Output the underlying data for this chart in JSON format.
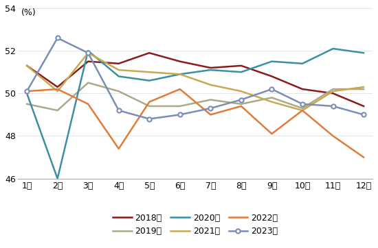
{
  "months": [
    "1月",
    "2月",
    "3月",
    "4月",
    "5月",
    "6月",
    "7月",
    "8月",
    "9月",
    "10月",
    "11月",
    "12月"
  ],
  "series_order": [
    "2018年",
    "2019年",
    "2020年",
    "2021年",
    "2022年",
    "2023年"
  ],
  "series": {
    "2018年": {
      "values": [
        51.3,
        50.3,
        51.5,
        51.4,
        51.9,
        51.5,
        51.2,
        51.3,
        50.8,
        50.2,
        50.0,
        49.4
      ],
      "color": "#8B1A1A",
      "marker": null,
      "linewidth": 1.8
    },
    "2019年": {
      "values": [
        49.5,
        49.2,
        50.5,
        50.1,
        49.4,
        49.4,
        49.7,
        49.5,
        49.8,
        49.3,
        50.2,
        50.2
      ],
      "color": "#AAAA88",
      "marker": null,
      "linewidth": 1.8
    },
    "2020年": {
      "values": [
        50.0,
        46.0,
        52.0,
        50.8,
        50.6,
        50.9,
        51.1,
        51.0,
        51.5,
        51.4,
        52.1,
        51.9
      ],
      "color": "#3A8FA3",
      "marker": null,
      "linewidth": 1.8
    },
    "2021年": {
      "values": [
        51.3,
        50.1,
        51.9,
        51.1,
        51.0,
        50.9,
        50.4,
        50.1,
        49.6,
        49.2,
        50.1,
        50.3
      ],
      "color": "#C8A951",
      "marker": null,
      "linewidth": 1.8
    },
    "2022年": {
      "values": [
        50.1,
        50.2,
        49.5,
        47.4,
        49.6,
        50.2,
        49.0,
        49.4,
        48.1,
        49.2,
        48.0,
        47.0
      ],
      "color": "#E07B39",
      "marker": null,
      "linewidth": 1.8
    },
    "2023年": {
      "values": [
        50.1,
        52.6,
        51.9,
        49.2,
        48.8,
        49.0,
        49.3,
        49.7,
        50.2,
        49.5,
        49.4,
        49.0
      ],
      "color": "#7B8DB5",
      "marker": "o",
      "linewidth": 1.8
    }
  },
  "ylim": [
    46,
    54
  ],
  "yticks": [
    46,
    48,
    50,
    52,
    54
  ],
  "ylabel_text": "(%)",
  "background_color": "#ffffff",
  "legend_row1": [
    "2018年",
    "2019年",
    "2020年"
  ],
  "legend_row2": [
    "2021年",
    "2022年",
    "2023年"
  ],
  "grid_color": "#e0e0e0"
}
